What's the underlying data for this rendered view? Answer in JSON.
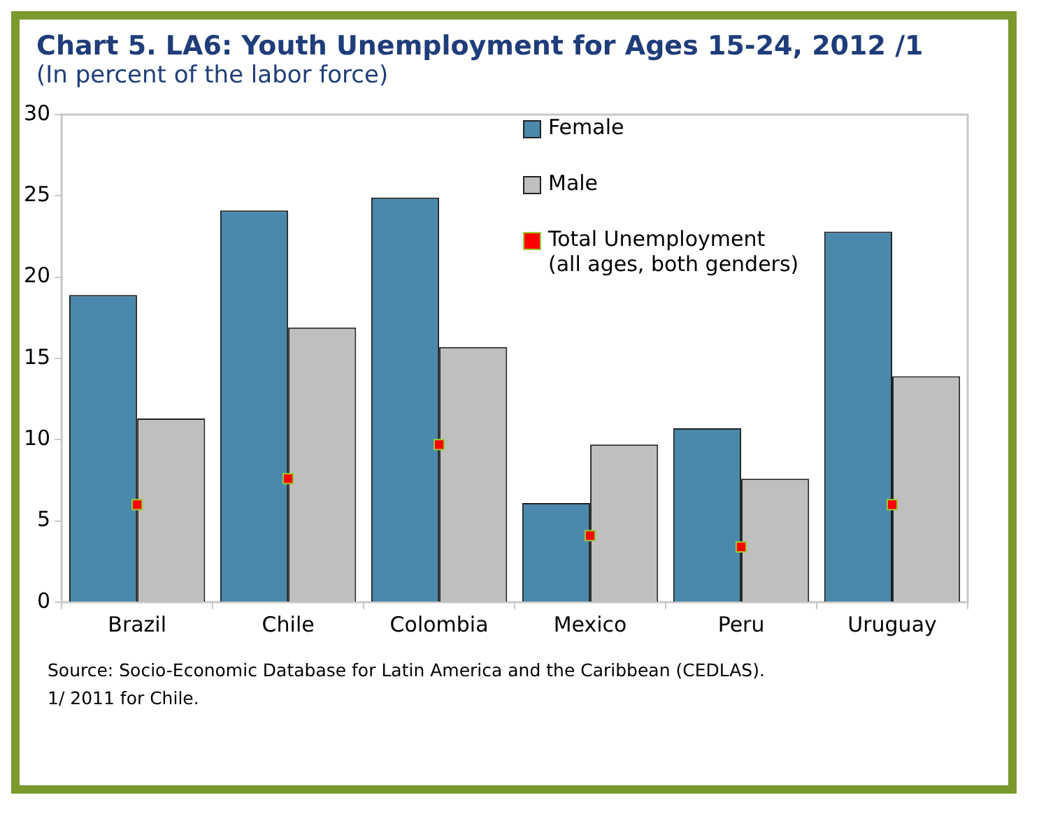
{
  "chart_data": {
    "type": "bar",
    "title": "Chart 5. LA6: Youth Unemployment for Ages 15-24, 2012 /1",
    "subtitle": "(In percent of the labor force)",
    "categories": [
      "Brazil",
      "Chile",
      "Colombia",
      "Mexico",
      "Peru",
      "Uruguay"
    ],
    "series": [
      {
        "name": "Female",
        "color": "#4a89ab",
        "values": [
          18.9,
          24.1,
          24.9,
          6.1,
          10.7,
          22.8
        ]
      },
      {
        "name": "Male",
        "color": "#bfbfbf",
        "values": [
          11.3,
          16.9,
          15.7,
          9.7,
          7.6,
          13.9
        ]
      },
      {
        "name": "Total Unemployment (all ages, both genders)",
        "type": "scatter",
        "marker": "square",
        "x": [
          "Brazil",
          "Chile",
          "Colombia",
          "Mexico",
          "Peru",
          "Uruguay"
        ],
        "color": "#ff0000",
        "values": [
          6.0,
          7.6,
          9.7,
          4.1,
          3.4,
          6.0
        ]
      }
    ],
    "ylim": [
      0,
      30
    ],
    "yticks": [
      0,
      5,
      10,
      15,
      20,
      25,
      30
    ],
    "grid": false,
    "legend": "top right",
    "annotations": [
      "Source: Socio-Economic Database for Latin America and the Caribbean (CEDLAS).",
      "1/ 2011 for Chile."
    ]
  }
}
